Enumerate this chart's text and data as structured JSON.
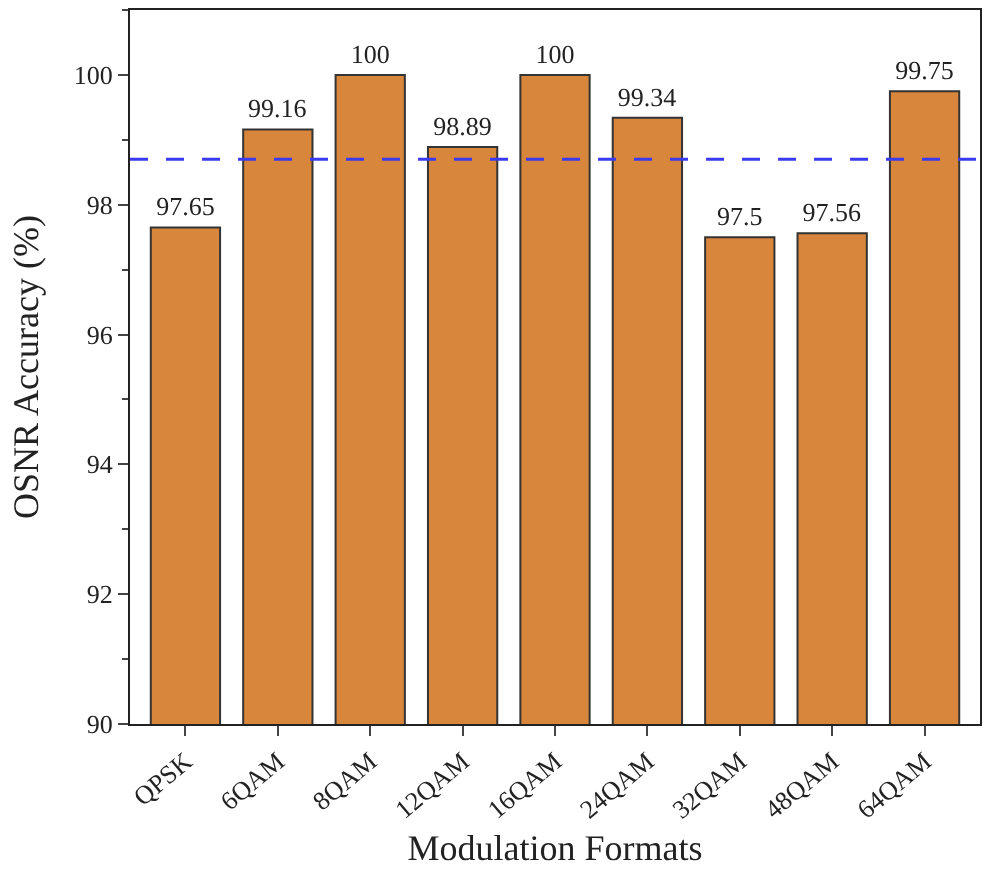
{
  "chart_data": {
    "type": "bar",
    "xlabel": "Modulation Formats",
    "ylabel": "OSNR Accuracy (%)",
    "categories": [
      "QPSK",
      "6QAM",
      "8QAM",
      "12QAM",
      "16QAM",
      "24QAM",
      "32QAM",
      "48QAM",
      "64QAM"
    ],
    "values": [
      97.65,
      99.16,
      100,
      98.89,
      100,
      99.34,
      97.5,
      97.56,
      99.75
    ],
    "color": "#d8863b",
    "ylim": [
      90,
      101
    ],
    "yticks": [
      90,
      92,
      94,
      96,
      98,
      100
    ],
    "data_labels": true,
    "grid": false,
    "legend": false,
    "ref_lines": [
      {
        "axis": "y",
        "value": 98.7,
        "color": "#3a3af0",
        "line_style": "dashed"
      }
    ]
  }
}
